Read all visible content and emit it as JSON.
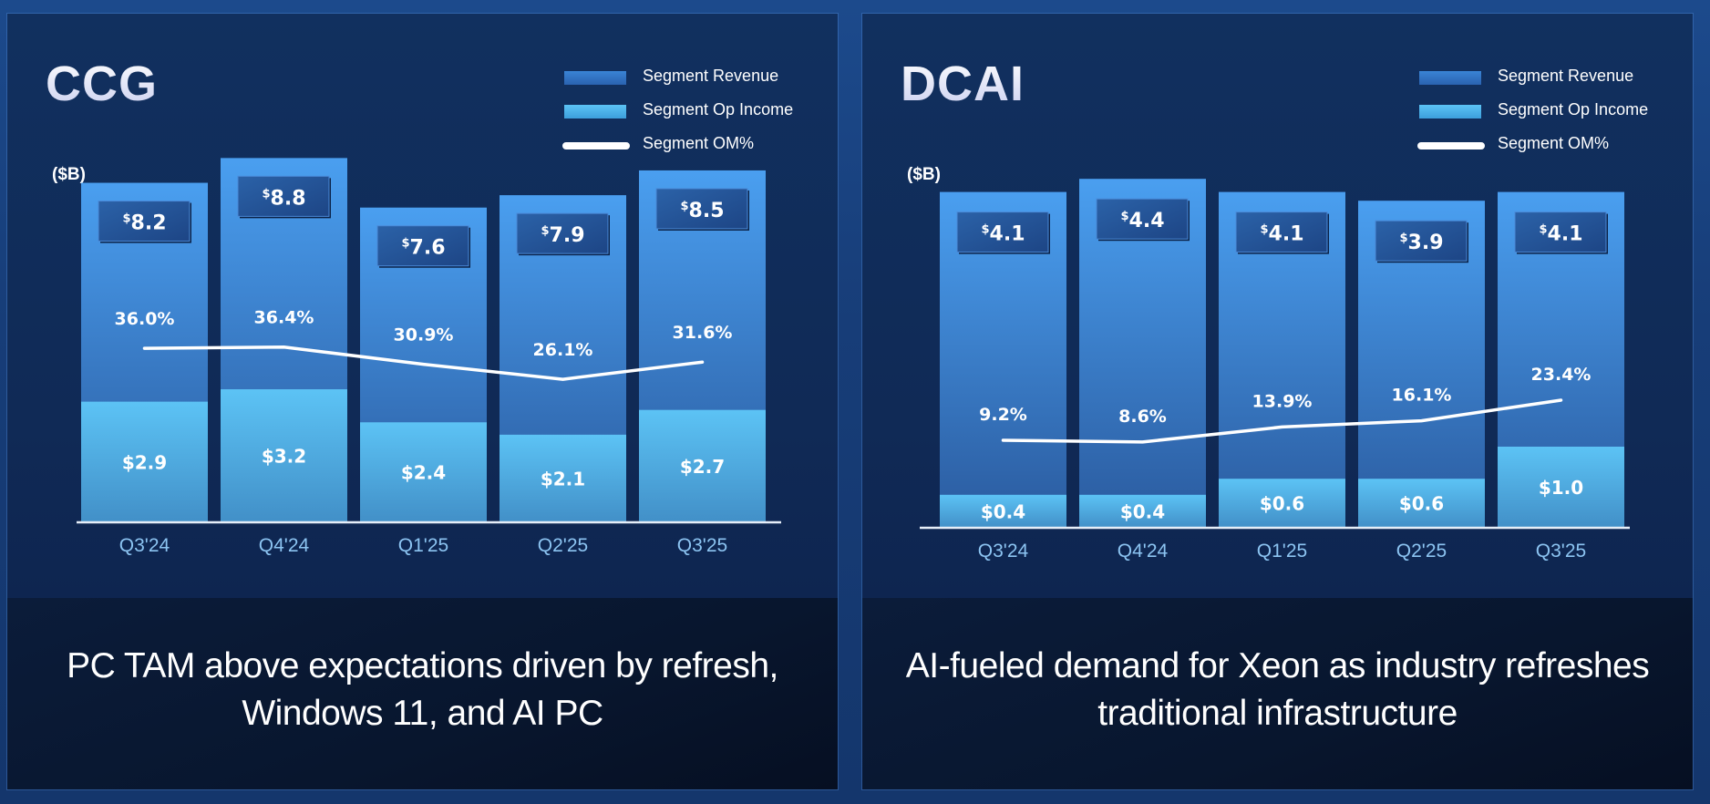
{
  "colors": {
    "revenue_top": "#4a9ff0",
    "revenue_bottom": "#2a5a9e",
    "op_income_top": "#5cc3f5",
    "op_income_bottom": "#4290c8",
    "om_line": "#ffffff",
    "value_box": "#245294",
    "tick_label": "#8cc4f2"
  },
  "legend": {
    "revenue": "Segment Revenue",
    "op_income": "Segment Op Income",
    "om": "Segment OM%"
  },
  "panels": [
    {
      "title": "CCG",
      "unit": "($B)",
      "caption": "PC TAM above expectations driven by refresh, Windows 11,  and AI PC"
    },
    {
      "title": "DCAI",
      "unit": "($B)",
      "caption": "AI-fueled demand for Xeon as industry refreshes traditional infrastructure"
    }
  ],
  "chart_data": [
    {
      "type": "bar",
      "title": "CCG",
      "ylabel": "($B)",
      "categories": [
        "Q3'24",
        "Q4'24",
        "Q1'25",
        "Q2'25",
        "Q3'25"
      ],
      "series": [
        {
          "name": "Segment Revenue",
          "values": [
            8.2,
            8.8,
            7.6,
            7.9,
            8.5
          ],
          "labels": [
            "8.2",
            "8.8",
            "7.6",
            "7.9",
            "8.5"
          ]
        },
        {
          "name": "Segment Op Income",
          "values": [
            2.9,
            3.2,
            2.4,
            2.1,
            2.7
          ],
          "labels": [
            "$2.9",
            "$3.2",
            "$2.4",
            "$2.1",
            "$2.7"
          ]
        },
        {
          "name": "Segment OM%",
          "type": "line",
          "values": [
            36.0,
            36.4,
            30.9,
            26.1,
            31.6
          ],
          "labels": [
            "36.0%",
            "36.4%",
            "30.9%",
            "26.1%",
            "31.6%"
          ]
        }
      ],
      "legend_position": "top-right",
      "grid": false
    },
    {
      "type": "bar",
      "title": "DCAI",
      "ylabel": "($B)",
      "categories": [
        "Q3'24",
        "Q4'24",
        "Q1'25",
        "Q2'25",
        "Q3'25"
      ],
      "series": [
        {
          "name": "Segment Revenue",
          "values": [
            4.1,
            4.4,
            4.1,
            3.9,
            4.1
          ],
          "labels": [
            "4.1",
            "4.4",
            "4.1",
            "3.9",
            "4.1"
          ]
        },
        {
          "name": "Segment Op Income",
          "values": [
            0.4,
            0.4,
            0.6,
            0.6,
            1.0
          ],
          "labels": [
            "$0.4",
            "$0.4",
            "$0.6",
            "$0.6",
            "$1.0"
          ]
        },
        {
          "name": "Segment OM%",
          "type": "line",
          "values": [
            9.2,
            8.6,
            13.9,
            16.1,
            23.4
          ],
          "labels": [
            "9.2%",
            "8.6%",
            "13.9%",
            "16.1%",
            "23.4%"
          ]
        }
      ],
      "legend_position": "top-right",
      "grid": false
    }
  ]
}
